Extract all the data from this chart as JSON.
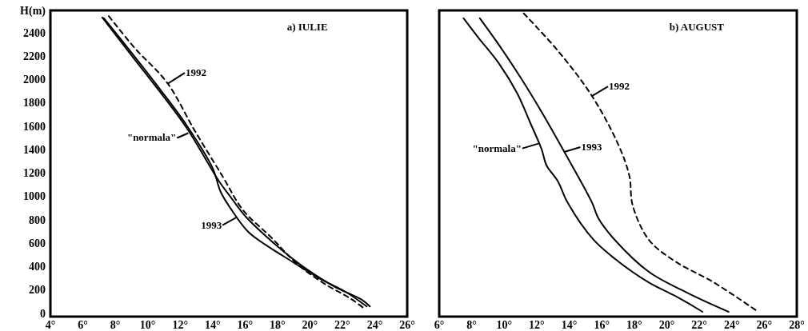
{
  "chart_data": [
    {
      "type": "line",
      "title": "a) IULIE",
      "ylabel": "H(m)",
      "xlim": [
        4,
        26
      ],
      "ylim": [
        -30,
        2590
      ],
      "xticks": [
        {
          "value": 4,
          "label": "4°"
        },
        {
          "value": 6,
          "label": "6°"
        },
        {
          "value": 8,
          "label": "8°"
        },
        {
          "value": 10,
          "label": "10°"
        },
        {
          "value": 12,
          "label": "12°"
        },
        {
          "value": 14,
          "label": "14°"
        },
        {
          "value": 16,
          "label": "16°"
        },
        {
          "value": 18,
          "label": "18°"
        },
        {
          "value": 20,
          "label": "20°"
        },
        {
          "value": 22,
          "label": "22°"
        },
        {
          "value": 24,
          "label": "24°"
        },
        {
          "value": 26,
          "label": "26°"
        }
      ],
      "yticks": [
        0,
        200,
        400,
        600,
        800,
        1000,
        1200,
        1400,
        1600,
        1800,
        2000,
        2200,
        2400
      ],
      "grid": false,
      "series": [
        {
          "color": "#000000",
          "line_style": "solid",
          "x": [
            7.2,
            9.1,
            10.7,
            12.4,
            14.4,
            15.0,
            16.0,
            17.0,
            18.3,
            19.8,
            21.5,
            23.2,
            23.7
          ],
          "values": [
            2530,
            2188,
            1903,
            1584,
            1128,
            1014,
            832,
            695,
            536,
            376,
            228,
            114,
            57
          ]
        },
        {
          "color": "#000000",
          "line_style": "solid",
          "x": [
            7.3,
            9.1,
            10.7,
            12.4,
            14.0,
            14.5,
            15.2,
            16.2,
            17.3,
            19.0,
            20.6,
            22.2,
            23.5
          ],
          "values": [
            2523,
            2211,
            1926,
            1607,
            1242,
            1037,
            877,
            695,
            581,
            433,
            296,
            182,
            57
          ]
        },
        {
          "color": "#000000",
          "line_style": "dashed",
          "x": [
            7.6,
            9.2,
            11.2,
            12.9,
            14.6,
            15.9,
            17.6,
            19.2,
            20.9,
            22.5,
            23.4
          ],
          "values": [
            2541,
            2268,
            1971,
            1561,
            1174,
            877,
            650,
            422,
            251,
            125,
            34
          ]
        }
      ],
      "annotations": [
        {
          "text": "1992",
          "x": 11.2,
          "y": 1960
        },
        {
          "text": "\"normala\"",
          "x": 12.5,
          "y": 1540
        },
        {
          "text": "1993",
          "x": 15.5,
          "y": 820
        }
      ]
    },
    {
      "type": "line",
      "title": "b) AUGUST",
      "xlim": [
        6,
        28
      ],
      "ylim": [
        -30,
        2590
      ],
      "tick_labels": "x",
      "xticks": [
        {
          "value": 6,
          "label": "6°"
        },
        {
          "value": 8,
          "label": "8°"
        },
        {
          "value": 10,
          "label": "10°"
        },
        {
          "value": 12,
          "label": "12°"
        },
        {
          "value": 14,
          "label": "14°"
        },
        {
          "value": 16,
          "label": "16°"
        },
        {
          "value": 18,
          "label": "18°"
        },
        {
          "value": 20,
          "label": "20°"
        },
        {
          "value": 22,
          "label": "22°"
        },
        {
          "value": 24,
          "label": "24°"
        },
        {
          "value": 26,
          "label": "26°"
        },
        {
          "value": 28,
          "label": "28°"
        }
      ],
      "grid": false,
      "series": [
        {
          "color": "#000000",
          "line_style": "solid",
          "x": [
            7.5,
            8.4,
            9.7,
            10.8,
            11.6,
            12.3,
            12.6,
            13.3,
            13.9,
            15.5,
            17.0,
            18.9,
            20.5,
            22.2
          ],
          "values": [
            2523,
            2359,
            2131,
            1880,
            1629,
            1402,
            1265,
            1128,
            946,
            627,
            444,
            262,
            148,
            11
          ]
        },
        {
          "color": "#000000",
          "line_style": "solid",
          "x": [
            8.5,
            9.7,
            11.0,
            12.4,
            13.7,
            15.4,
            15.8,
            16.8,
            18.9,
            21.3,
            23.8
          ],
          "values": [
            2523,
            2290,
            2017,
            1698,
            1379,
            946,
            809,
            627,
            353,
            171,
            11
          ]
        },
        {
          "color": "#000000",
          "line_style": "dashed",
          "x": [
            11.2,
            13.3,
            15.4,
            17.0,
            17.7,
            17.9,
            18.9,
            20.5,
            22.9,
            25.5
          ],
          "values": [
            2564,
            2245,
            1857,
            1447,
            1174,
            923,
            627,
            444,
            262,
            23
          ]
        }
      ],
      "annotations": [
        {
          "text": "\"normala\"",
          "x": 12.1,
          "y": 1450
        },
        {
          "text": "1993",
          "x": 13.7,
          "y": 1379
        },
        {
          "text": "1992",
          "x": 15.4,
          "y": 1857
        }
      ]
    }
  ]
}
